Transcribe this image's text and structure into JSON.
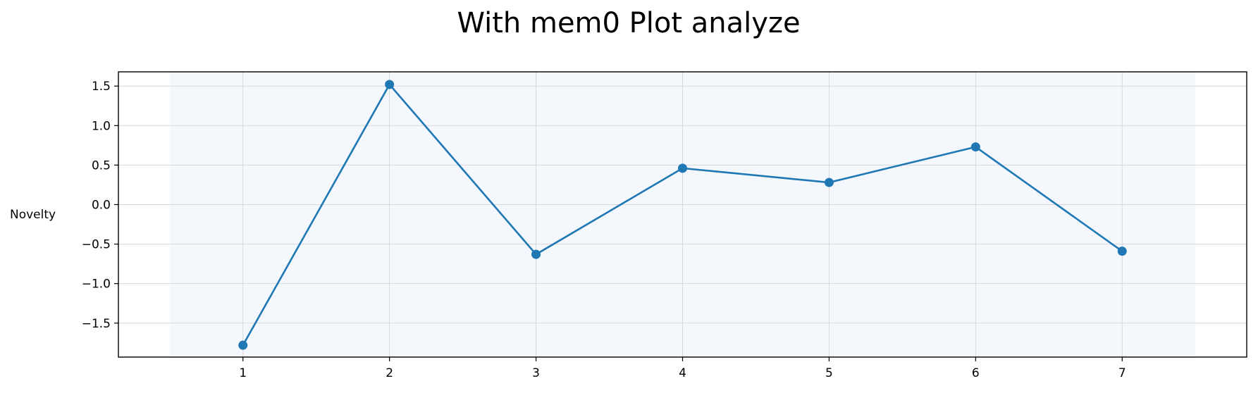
{
  "chart_data": {
    "type": "line",
    "title": "With mem0 Plot analyze",
    "xlabel": "",
    "ylabel": "Novelty",
    "x": [
      1,
      2,
      3,
      4,
      5,
      6,
      7
    ],
    "xticks": [
      "1",
      "2",
      "3",
      "4",
      "5",
      "6",
      "7"
    ],
    "xlim": [
      0.15,
      7.85
    ],
    "ylim": [
      -1.93,
      1.68
    ],
    "yticks": [
      1.5,
      1.0,
      0.5,
      0.0,
      -0.5,
      -1.0,
      -1.5
    ],
    "ytick_labels": [
      "1.5",
      "1.0",
      "0.5",
      "0.0",
      "−0.5",
      "−1.0",
      "−1.5"
    ],
    "grid": true,
    "shaded_range": [
      0.5,
      7.5
    ],
    "series": [
      {
        "values": [
          -1.78,
          1.52,
          -0.63,
          0.46,
          0.28,
          0.73,
          -0.59
        ],
        "color": "#1f77b4",
        "marker": "circle"
      }
    ],
    "colors": {
      "shade": "#f4f8fd",
      "grid": "#d8d8d8",
      "axes": "#000000"
    }
  }
}
